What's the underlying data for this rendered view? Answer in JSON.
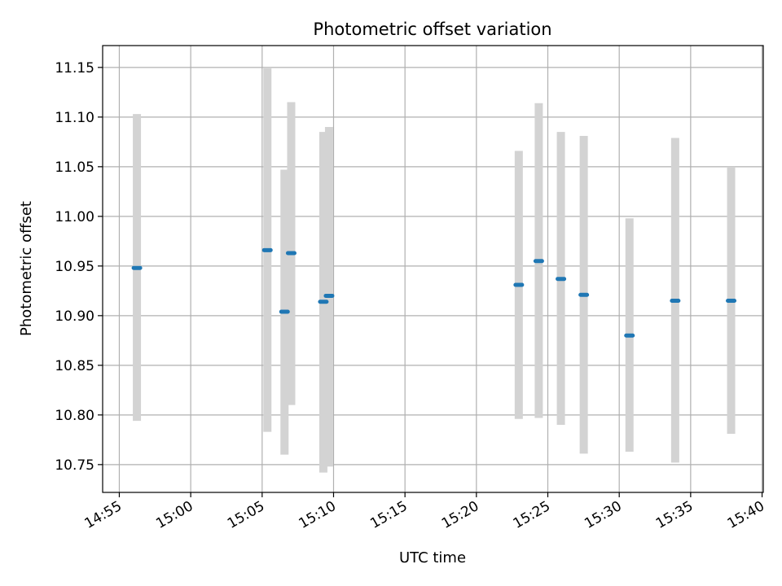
{
  "chart_data": {
    "type": "scatter",
    "title": "Photometric offset variation",
    "xlabel": "UTC time",
    "ylabel": "Photometric offset",
    "xlim": [
      "14:53:50",
      "15:40:05"
    ],
    "ylim": [
      10.722,
      11.172
    ],
    "grid": true,
    "x_ticks": [
      "14:55",
      "15:00",
      "15:05",
      "15:10",
      "15:15",
      "15:20",
      "15:25",
      "15:30",
      "15:35",
      "15:40"
    ],
    "y_ticks": [
      "10.75",
      "10.80",
      "10.85",
      "10.90",
      "10.95",
      "11.00",
      "11.05",
      "11.10",
      "11.15"
    ],
    "series": [
      {
        "color": "#1f77b4",
        "errorbar_color": "#d3d3d3",
        "points": [
          {
            "x": "14:56:14",
            "y": 10.948,
            "ylow": 10.794,
            "yhigh": 11.103
          },
          {
            "x": "15:05:22",
            "y": 10.966,
            "ylow": 10.783,
            "yhigh": 11.149
          },
          {
            "x": "15:06:34",
            "y": 10.904,
            "ylow": 10.76,
            "yhigh": 11.047
          },
          {
            "x": "15:07:02",
            "y": 10.963,
            "ylow": 10.81,
            "yhigh": 11.115
          },
          {
            "x": "15:09:17",
            "y": 10.914,
            "ylow": 10.742,
            "yhigh": 11.085
          },
          {
            "x": "15:09:41",
            "y": 10.92,
            "ylow": 10.748,
            "yhigh": 11.09
          },
          {
            "x": "15:22:58",
            "y": 10.931,
            "ylow": 10.796,
            "yhigh": 11.066
          },
          {
            "x": "15:24:22",
            "y": 10.955,
            "ylow": 10.797,
            "yhigh": 11.114
          },
          {
            "x": "15:25:55",
            "y": 10.937,
            "ylow": 10.79,
            "yhigh": 11.085
          },
          {
            "x": "15:27:31",
            "y": 10.921,
            "ylow": 10.761,
            "yhigh": 11.081
          },
          {
            "x": "15:30:43",
            "y": 10.88,
            "ylow": 10.763,
            "yhigh": 10.998
          },
          {
            "x": "15:33:55",
            "y": 10.915,
            "ylow": 10.752,
            "yhigh": 11.079
          },
          {
            "x": "15:37:50",
            "y": 10.915,
            "ylow": 10.781,
            "yhigh": 11.05
          }
        ]
      }
    ]
  }
}
